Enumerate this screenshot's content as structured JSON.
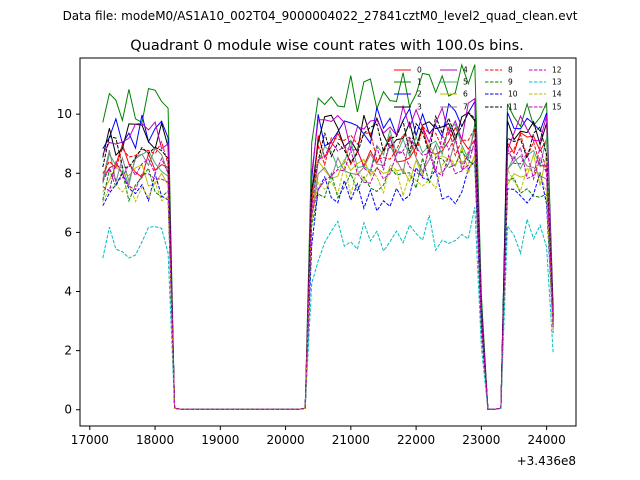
{
  "figure": {
    "suptitle": "Data file: modeM0/AS1A10_002T04_9000004022_27841cztM0_level2_quad_clean.evt"
  },
  "chart_data": {
    "type": "line",
    "title": "Quadrant 0 module wise count rates with 100.0s bins.",
    "xlabel": "",
    "ylabel": "",
    "x_offset_label": "+3.436e8",
    "xlim": [
      16850,
      24450
    ],
    "ylim": [
      -0.55,
      11.9
    ],
    "xticks": [
      17000,
      18000,
      19000,
      20000,
      21000,
      22000,
      23000,
      24000
    ],
    "yticks": [
      0,
      2,
      4,
      6,
      8,
      10
    ],
    "legend": {
      "position": "top-right",
      "ncol": 4
    },
    "segments": [
      [
        17200,
        17300,
        17400,
        17500,
        17600,
        17700,
        17800,
        17900,
        18000,
        18100,
        18200,
        18300
      ],
      [
        18300,
        18400,
        18500,
        18600,
        18700,
        18800,
        18900,
        19000,
        19100,
        19200,
        19300,
        19400,
        19500,
        19600,
        19700,
        19800,
        19900,
        20000,
        20100,
        20200,
        20300
      ],
      [
        20300,
        20400,
        20500,
        20600,
        20700,
        20800,
        20900,
        21000,
        21100,
        21200,
        21300,
        21400,
        21500,
        21600,
        21700,
        21800,
        21900,
        22000,
        22100,
        22200,
        22300,
        22400,
        22500,
        22600,
        22700,
        22800,
        22900
      ],
      [
        22900,
        23000,
        23100,
        23200,
        23300
      ],
      [
        23300,
        23400,
        23500,
        23600,
        23700,
        23800,
        23900,
        24000,
        24100
      ]
    ],
    "series": [
      {
        "name": "0",
        "color": "#ff0000",
        "dash": "solid",
        "levels": [
          8.4,
          8.6,
          0.0,
          8.6,
          0.0,
          9.0,
          0.0,
          8.8,
          3.0
        ]
      },
      {
        "name": "1",
        "color": "#008000",
        "dash": "solid",
        "levels": [
          10.3,
          10.6,
          0.0,
          10.6,
          0.0,
          11.0,
          0.0,
          10.0,
          3.4
        ]
      },
      {
        "name": "2",
        "color": "#0000ff",
        "dash": "solid",
        "levels": [
          9.4,
          9.6,
          0.0,
          9.4,
          0.0,
          10.0,
          0.0,
          9.6,
          3.2
        ]
      },
      {
        "name": "3",
        "color": "#000000",
        "dash": "solid",
        "levels": [
          9.1,
          9.3,
          0.0,
          9.2,
          0.0,
          9.6,
          0.0,
          9.2,
          3.1
        ]
      },
      {
        "name": "4",
        "color": "#bf00bf",
        "dash": "solid",
        "levels": [
          9.2,
          9.4,
          0.0,
          9.3,
          0.0,
          9.8,
          0.0,
          9.4,
          3.2
        ]
      },
      {
        "name": "5",
        "color": "#3cb371",
        "dash": "solid",
        "levels": [
          8.2,
          8.3,
          0.0,
          8.6,
          0.0,
          9.2,
          0.0,
          8.6,
          2.9
        ]
      },
      {
        "name": "6",
        "color": "#bfbf00",
        "dash": "solid",
        "levels": [
          7.9,
          8.0,
          0.0,
          8.0,
          0.0,
          8.4,
          0.0,
          8.0,
          2.8
        ]
      },
      {
        "name": "7",
        "color": "#808080",
        "dash": "solid",
        "levels": [
          8.3,
          8.4,
          0.0,
          8.3,
          0.0,
          8.7,
          0.0,
          8.4,
          2.9
        ]
      },
      {
        "name": "8",
        "color": "#ff0000",
        "dash": "dashed",
        "levels": [
          8.5,
          8.7,
          0.0,
          8.6,
          0.0,
          9.0,
          0.0,
          8.8,
          3.0
        ]
      },
      {
        "name": "9",
        "color": "#008000",
        "dash": "dashed",
        "levels": [
          7.6,
          7.8,
          0.0,
          7.7,
          0.0,
          8.0,
          0.0,
          7.8,
          2.7
        ]
      },
      {
        "name": "10",
        "color": "#0000ff",
        "dash": "dashed",
        "levels": [
          7.4,
          7.5,
          0.0,
          7.2,
          0.0,
          7.6,
          0.0,
          7.4,
          2.6
        ]
      },
      {
        "name": "11",
        "color": "#000000",
        "dash": "dashed",
        "levels": [
          8.7,
          8.9,
          0.0,
          8.9,
          0.0,
          9.3,
          0.0,
          9.0,
          3.1
        ]
      },
      {
        "name": "12",
        "color": "#bf00bf",
        "dash": "dashed",
        "levels": [
          8.2,
          8.4,
          0.0,
          8.3,
          0.0,
          8.8,
          0.0,
          8.4,
          2.9
        ]
      },
      {
        "name": "13",
        "color": "#00bfbf",
        "dash": "dashed",
        "levels": [
          5.6,
          5.7,
          0.0,
          5.6,
          0.0,
          6.0,
          0.0,
          5.8,
          1.9
        ]
      },
      {
        "name": "14",
        "color": "#bfbf00",
        "dash": "dashed",
        "levels": [
          7.5,
          7.6,
          0.0,
          7.6,
          0.0,
          8.0,
          0.0,
          7.6,
          2.6
        ]
      },
      {
        "name": "15",
        "color": "#bf00bf",
        "dash": "dashed",
        "levels": [
          8.0,
          8.1,
          0.0,
          8.1,
          0.0,
          8.5,
          0.0,
          8.2,
          2.8
        ]
      }
    ]
  }
}
